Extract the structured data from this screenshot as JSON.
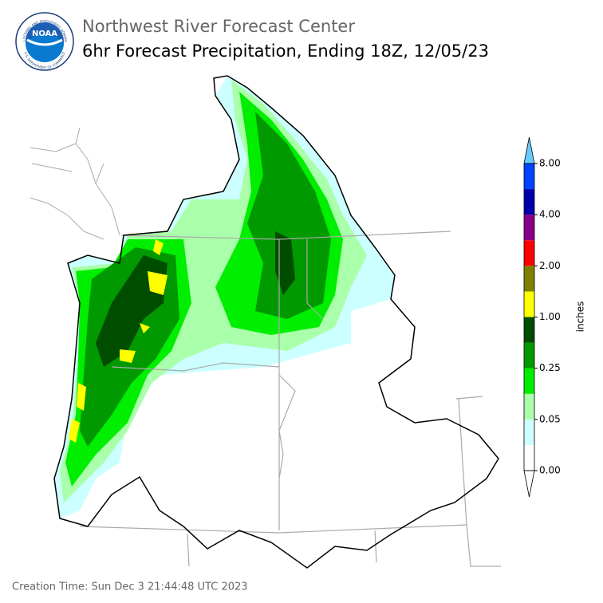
{
  "header": {
    "title": "Northwest River Forecast Center",
    "subtitle": "6hr Forecast Precipitation, Ending 18Z, 12/05/23"
  },
  "logo": {
    "text": "NOAA",
    "ring_top": "NATIONAL OCEANIC AND ATMOSPHERIC ADMINISTRATION",
    "ring_bottom": "U.S. DEPARTMENT OF COMMERCE"
  },
  "colorbar": {
    "label": "inches",
    "colors": [
      "#ffffff",
      "#ccffff",
      "#aaffaa",
      "#00ee00",
      "#009900",
      "#004d00",
      "#ffff00",
      "#808000",
      "#ff0000",
      "#880088",
      "#0000aa",
      "#0044ff"
    ],
    "over_color": "#66ccff",
    "under_color": "#ffffff",
    "ticks": [
      {
        "value": 0,
        "label": "0.00"
      },
      {
        "value": 0.05,
        "label": "0.05"
      },
      {
        "value": 0.25,
        "label": "0.25"
      },
      {
        "value": 1,
        "label": "1.00"
      },
      {
        "value": 2,
        "label": "2.00"
      },
      {
        "value": 4,
        "label": "4.00"
      },
      {
        "value": 8,
        "label": "8.00"
      }
    ]
  },
  "footer": {
    "creation_time": "Creation Time: Sun Dec 3 21:44:48 UTC 2023"
  }
}
